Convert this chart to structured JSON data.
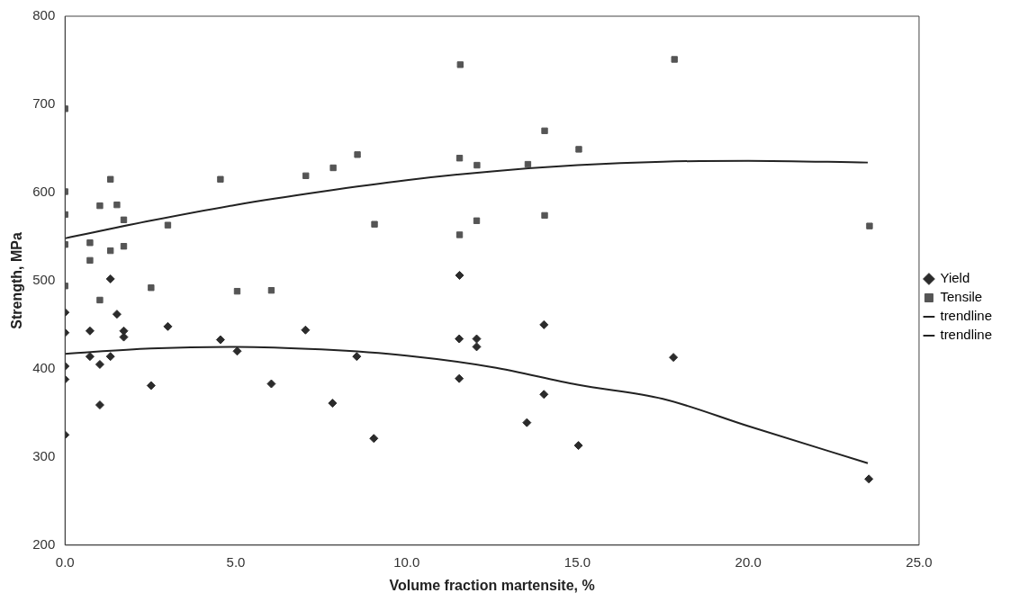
{
  "chart_data": {
    "type": "scatter",
    "xlabel": "Volume fraction martensite, %",
    "ylabel": "Strength, MPa",
    "xlim": [
      0,
      25
    ],
    "xticks": [
      {
        "value": 0,
        "label": "0.0"
      },
      {
        "value": 5,
        "label": "5.0"
      },
      {
        "value": 10,
        "label": "10.0"
      },
      {
        "value": 15,
        "label": "15.0"
      },
      {
        "value": 20,
        "label": "20.0"
      },
      {
        "value": 25,
        "label": "25.0"
      }
    ],
    "ylim": [
      200,
      800
    ],
    "yticks": [
      200,
      300,
      400,
      500,
      600,
      700,
      800
    ],
    "grid": false,
    "legend": "right",
    "series": [
      {
        "name": "Yield",
        "marker": "diamond",
        "color": "#2b2b2b",
        "x": [
          0,
          0,
          0,
          0,
          0,
          1.33,
          1.52,
          0.73,
          1.72,
          1.72,
          3.01,
          4.55,
          0.73,
          1.02,
          1.33,
          5.04,
          2.52,
          6.04,
          1.02,
          11.55,
          7.04,
          11.54,
          12.05,
          12.05,
          14.02,
          8.54,
          11.54,
          7.83,
          14.02,
          13.52,
          9.04,
          15.03,
          17.81,
          23.53
        ],
        "values": [
          464,
          441,
          403,
          388,
          325,
          502,
          462,
          443,
          443,
          436,
          448,
          433,
          414,
          405,
          414,
          420,
          381,
          383,
          359,
          506,
          444,
          434,
          434,
          425,
          450,
          414,
          389,
          361,
          371,
          339,
          321,
          313,
          413,
          275
        ]
      },
      {
        "name": "Tensile",
        "marker": "square",
        "color": "#555555",
        "x": [
          0,
          0,
          0,
          0,
          0,
          1.33,
          1.02,
          1.52,
          1.72,
          3.01,
          0.73,
          1.33,
          1.72,
          0.73,
          2.52,
          1.02,
          4.55,
          5.04,
          6.04,
          11.57,
          7.05,
          7.85,
          8.56,
          11.55,
          12.06,
          13.55,
          14.04,
          15.04,
          9.06,
          12.05,
          11.55,
          14.04,
          17.84,
          23.55
        ],
        "values": [
          695,
          601,
          575,
          541,
          494,
          615,
          585,
          586,
          569,
          563,
          543,
          534,
          539,
          523,
          492,
          478,
          615,
          488,
          489,
          745,
          619,
          628,
          643,
          639,
          631,
          632,
          670,
          649,
          564,
          568,
          552,
          574,
          751,
          562
        ]
      },
      {
        "name": "trendline",
        "type": "line",
        "marker": "none",
        "color": "#222222",
        "x": [
          0,
          2.5,
          5,
          7.5,
          10,
          12.5,
          15,
          17.5,
          20,
          23.5
        ],
        "values": [
          417,
          423,
          425,
          422,
          415,
          402,
          382,
          366,
          335,
          293
        ]
      },
      {
        "name": "trendline",
        "type": "line",
        "marker": "none",
        "color": "#222222",
        "x": [
          0,
          2.5,
          5,
          7.5,
          10,
          12.5,
          15,
          17.5,
          20,
          23.5
        ],
        "values": [
          548,
          568,
          586,
          601,
          614,
          624,
          631,
          635,
          636,
          634
        ]
      }
    ]
  }
}
